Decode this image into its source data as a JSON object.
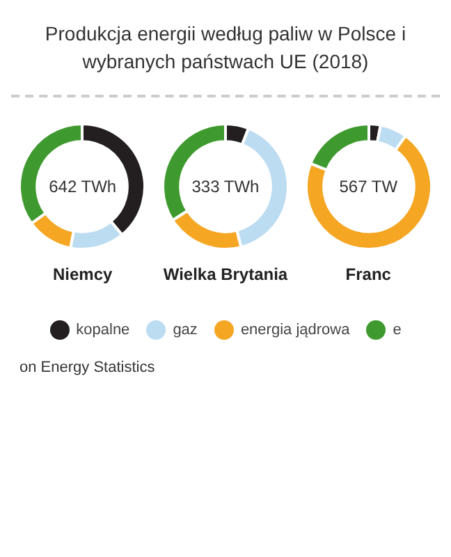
{
  "chart_data": [
    {
      "type": "other",
      "title": "Produkcja energii według paliw w Polsce i wybranych państwach UE (2018)",
      "annotations": [
        "on Energy Statistics"
      ]
    },
    {
      "type": "donut",
      "title": "Niemcy",
      "annotations": [
        "642 TWh"
      ],
      "categories": [
        "kopalne",
        "gaz",
        "energia jądrowa",
        "e"
      ],
      "values": [
        39,
        14,
        12,
        35
      ],
      "colors": [
        "#231f20",
        "#bcdcf2",
        "#f5a623",
        "#3e9a2e"
      ],
      "legend": "bottom"
    },
    {
      "type": "donut",
      "title": "Wielka Brytania",
      "annotations": [
        "333 TWh"
      ],
      "values": [
        6,
        40,
        20,
        34
      ],
      "colors": [
        "#231f20",
        "#bcdcf2",
        "#f5a623",
        "#3e9a2e"
      ]
    },
    {
      "type": "donut",
      "title": "Franc",
      "annotations": [
        "567 TW"
      ],
      "values": [
        3,
        7,
        71,
        19
      ],
      "colors": [
        "#231f20",
        "#bcdcf2",
        "#f5a623",
        "#3e9a2e"
      ]
    }
  ]
}
